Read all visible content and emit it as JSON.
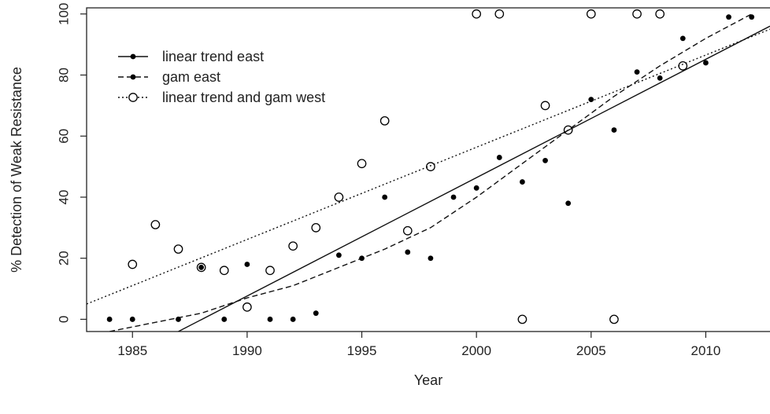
{
  "chart_data": {
    "type": "scatter",
    "xlabel": "Year",
    "ylabel": "% Detection of Weak Resistance",
    "xlim": [
      1983,
      2012.8
    ],
    "ylim": [
      -4,
      102
    ],
    "x_ticks": [
      1985,
      1990,
      1995,
      2000,
      2005,
      2010
    ],
    "y_ticks": [
      0,
      20,
      40,
      60,
      80,
      100
    ],
    "grid": false,
    "legend_position": "top-left",
    "legend": [
      {
        "label": "linear trend east",
        "line": "solid",
        "marker": "filled-circle"
      },
      {
        "label": "gam east",
        "line": "dashed",
        "marker": "filled-circle"
      },
      {
        "label": "linear trend and gam west",
        "line": "dotted",
        "marker": "open-circle"
      }
    ],
    "series": [
      {
        "name": "east",
        "marker": "filled-circle",
        "points": [
          [
            1984,
            0
          ],
          [
            1985,
            0
          ],
          [
            1987,
            0
          ],
          [
            1988,
            17
          ],
          [
            1989,
            0
          ],
          [
            1990,
            18
          ],
          [
            1991,
            0
          ],
          [
            1992,
            0
          ],
          [
            1993,
            2
          ],
          [
            1994,
            21
          ],
          [
            1995,
            20
          ],
          [
            1996,
            40
          ],
          [
            1997,
            22
          ],
          [
            1998,
            20
          ],
          [
            1999,
            40
          ],
          [
            2000,
            43
          ],
          [
            2001,
            53
          ],
          [
            2002,
            45
          ],
          [
            2003,
            52
          ],
          [
            2004,
            38
          ],
          [
            2005,
            72
          ],
          [
            2006,
            62
          ],
          [
            2007,
            81
          ],
          [
            2008,
            79
          ],
          [
            2009,
            92
          ],
          [
            2010,
            84
          ],
          [
            2011,
            99
          ],
          [
            2012,
            99
          ]
        ]
      },
      {
        "name": "west",
        "marker": "open-circle",
        "points": [
          [
            1985,
            18
          ],
          [
            1986,
            31
          ],
          [
            1987,
            23
          ],
          [
            1988,
            17
          ],
          [
            1989,
            16
          ],
          [
            1990,
            4
          ],
          [
            1991,
            16
          ],
          [
            1992,
            24
          ],
          [
            1993,
            30
          ],
          [
            1994,
            40
          ],
          [
            1995,
            51
          ],
          [
            1996,
            65
          ],
          [
            1997,
            29
          ],
          [
            1998,
            50
          ],
          [
            2000,
            100
          ],
          [
            2001,
            100
          ],
          [
            2002,
            0
          ],
          [
            2003,
            70
          ],
          [
            2004,
            62
          ],
          [
            2005,
            100
          ],
          [
            2006,
            0
          ],
          [
            2007,
            100
          ],
          [
            2008,
            100
          ],
          [
            2009,
            83
          ]
        ]
      }
    ],
    "lines": [
      {
        "name": "linear trend east",
        "style": "solid",
        "points": [
          [
            1987,
            -4
          ],
          [
            2012.8,
            96
          ]
        ]
      },
      {
        "name": "gam east",
        "style": "dashed",
        "points": [
          [
            1984,
            -4
          ],
          [
            1986,
            -1
          ],
          [
            1988,
            2
          ],
          [
            1990,
            7
          ],
          [
            1992,
            11
          ],
          [
            1994,
            17
          ],
          [
            1996,
            23
          ],
          [
            1998,
            30
          ],
          [
            2000,
            40
          ],
          [
            2002,
            51
          ],
          [
            2004,
            62
          ],
          [
            2006,
            73
          ],
          [
            2008,
            83
          ],
          [
            2010,
            92
          ],
          [
            2012,
            100
          ]
        ]
      },
      {
        "name": "linear trend and gam west",
        "style": "dotted",
        "points": [
          [
            1983,
            5
          ],
          [
            2012.8,
            95
          ]
        ]
      }
    ]
  }
}
